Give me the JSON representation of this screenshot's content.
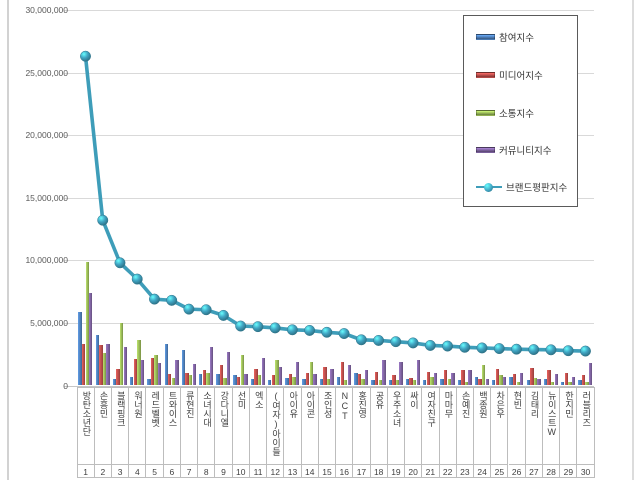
{
  "chart_data": {
    "type": "bar",
    "subtype": "grouped-bars-with-line-overlay",
    "title": "",
    "categories": [
      "방탄소년단",
      "손흥민",
      "블랙핑크",
      "워너원",
      "레드벨벳",
      "트와이스",
      "류현진",
      "소녀시대",
      "강다니엘",
      "선미",
      "엑소",
      "(여자)아이들",
      "아이유",
      "아이콘",
      "조인성",
      "NCT",
      "홍진영",
      "공유",
      "우주소녀",
      "싸이",
      "여자친구",
      "마마무",
      "손예진",
      "백종원",
      "차은우",
      "현빈",
      "김태리",
      "뉴이스트W",
      "한지민",
      "러블리즈"
    ],
    "ranks": [
      "1",
      "2",
      "3",
      "4",
      "5",
      "6",
      "7",
      "8",
      "9",
      "10",
      "11",
      "12",
      "13",
      "14",
      "15",
      "16",
      "17",
      "18",
      "19",
      "20",
      "21",
      "22",
      "23",
      "24",
      "25",
      "26",
      "27",
      "28",
      "29",
      "30"
    ],
    "y_axis": {
      "min": 0,
      "max": 30000000,
      "tick_interval": 5000000,
      "tick_labels": [
        "0",
        "5,000,000",
        "10,000,000",
        "15,000,000",
        "20,000,000",
        "25,000,000",
        "30,000,000"
      ]
    },
    "grid": true,
    "legend_position": "top-right",
    "series": [
      {
        "name": "참여지수",
        "type": "bar",
        "color": "#4F81BD",
        "values": [
          5900000,
          4000000,
          500000,
          700000,
          500000,
          3300000,
          2800000,
          900000,
          900000,
          800000,
          500000,
          400000,
          600000,
          500000,
          500000,
          700000,
          1000000,
          400000,
          400000,
          500000,
          400000,
          500000,
          400000,
          700000,
          400000,
          700000,
          400000,
          500000,
          300000,
          400000
        ]
      },
      {
        "name": "미디어지수",
        "type": "bar",
        "color": "#C0504D",
        "values": [
          3300000,
          3200000,
          1300000,
          2100000,
          2200000,
          900000,
          1000000,
          1200000,
          1600000,
          700000,
          1300000,
          800000,
          900000,
          1000000,
          1500000,
          1900000,
          900000,
          1100000,
          800000,
          600000,
          1100000,
          1200000,
          1200000,
          500000,
          1300000,
          900000,
          1400000,
          1200000,
          1000000,
          800000
        ]
      },
      {
        "name": "소통지수",
        "type": "bar",
        "color": "#9BBB59",
        "values": [
          9900000,
          2600000,
          5000000,
          3600000,
          2400000,
          600000,
          800000,
          1000000,
          600000,
          2400000,
          800000,
          2000000,
          700000,
          1900000,
          500000,
          400000,
          500000,
          400000,
          400000,
          400000,
          700000,
          500000,
          300000,
          1600000,
          800000,
          300000,
          600000,
          300000,
          300000,
          300000
        ]
      },
      {
        "name": "커뮤니티지수",
        "type": "bar",
        "color": "#8064A2",
        "values": [
          7400000,
          3300000,
          3100000,
          2000000,
          1800000,
          2000000,
          1700000,
          3100000,
          2700000,
          900000,
          2200000,
          1500000,
          1900000,
          900000,
          1300000,
          1600000,
          1200000,
          2000000,
          1900000,
          2000000,
          1000000,
          1000000,
          1200000,
          500000,
          700000,
          1000000,
          500000,
          900000,
          700000,
          1800000
        ]
      },
      {
        "name": "브랜드평판지수",
        "type": "line",
        "color": "#41A5C3",
        "values": [
          26300000,
          13200000,
          9800000,
          8500000,
          6900000,
          6800000,
          6100000,
          6050000,
          5600000,
          4750000,
          4700000,
          4600000,
          4450000,
          4400000,
          4250000,
          4150000,
          3650000,
          3600000,
          3500000,
          3400000,
          3200000,
          3150000,
          3050000,
          3000000,
          2950000,
          2900000,
          2870000,
          2850000,
          2780000,
          2750000
        ]
      }
    ]
  },
  "colors": {
    "gridline": "#d9d9d9",
    "axis_text": "#595959",
    "table_border": "#bdbdbd",
    "legend_border": "#5a5a5a",
    "page_edge": "#d2d2d2"
  }
}
